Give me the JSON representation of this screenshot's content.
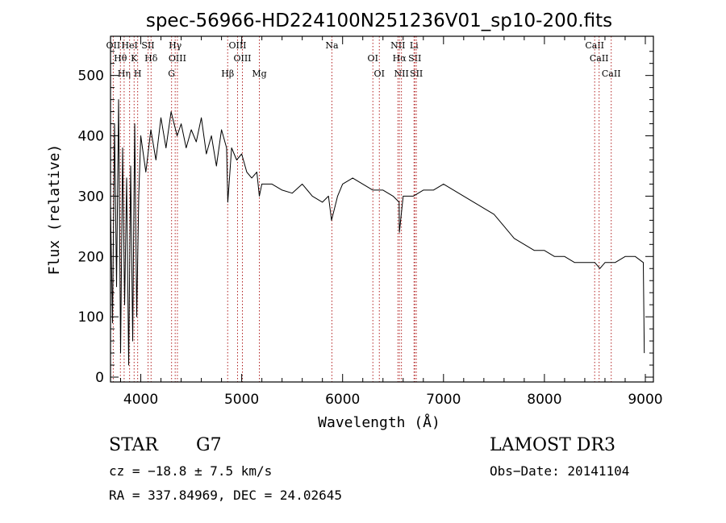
{
  "chart_data": {
    "type": "line",
    "title": "spec-56966-HD224100N251236V01_sp10-200.fits",
    "xlabel": "Wavelength (Å)",
    "ylabel": "Flux (relative)",
    "xlim": [
      3700,
      9080
    ],
    "ylim": [
      -8,
      565
    ],
    "x_ticks": [
      4000,
      5000,
      6000,
      7000,
      8000,
      9000
    ],
    "y_ticks": [
      0,
      100,
      200,
      300,
      400,
      500
    ],
    "series": [
      {
        "name": "spectrum",
        "x": [
          3700,
          3720,
          3740,
          3760,
          3780,
          3800,
          3820,
          3840,
          3860,
          3880,
          3900,
          3920,
          3940,
          3960,
          3980,
          4000,
          4050,
          4100,
          4150,
          4200,
          4250,
          4300,
          4330,
          4360,
          4400,
          4450,
          4500,
          4550,
          4600,
          4650,
          4700,
          4750,
          4800,
          4850,
          4862,
          4900,
          4950,
          5000,
          5050,
          5100,
          5150,
          5175,
          5200,
          5300,
          5400,
          5500,
          5600,
          5700,
          5800,
          5860,
          5890,
          5950,
          6000,
          6100,
          6200,
          6300,
          6400,
          6500,
          6560,
          6563,
          6600,
          6700,
          6800,
          6900,
          7000,
          7100,
          7200,
          7300,
          7400,
          7500,
          7600,
          7700,
          7800,
          7900,
          8000,
          8100,
          8200,
          8300,
          8400,
          8500,
          8550,
          8600,
          8650,
          8700,
          8800,
          8900,
          8980,
          8990
        ],
        "y": [
          280,
          90,
          420,
          150,
          460,
          40,
          380,
          120,
          330,
          20,
          350,
          60,
          420,
          100,
          300,
          400,
          340,
          410,
          360,
          430,
          380,
          440,
          420,
          400,
          420,
          380,
          410,
          390,
          430,
          370,
          400,
          350,
          410,
          380,
          290,
          380,
          360,
          370,
          340,
          330,
          340,
          300,
          320,
          320,
          310,
          305,
          320,
          300,
          290,
          300,
          260,
          300,
          320,
          330,
          320,
          310,
          310,
          300,
          290,
          240,
          300,
          300,
          310,
          310,
          320,
          310,
          300,
          290,
          280,
          270,
          250,
          230,
          220,
          210,
          210,
          200,
          200,
          190,
          190,
          190,
          180,
          190,
          190,
          190,
          200,
          200,
          190,
          40
        ]
      }
    ],
    "line_markers": [
      {
        "label": "OII",
        "x": 3727
      },
      {
        "label": "Hθ",
        "x": 3798
      },
      {
        "label": "Hη",
        "x": 3835
      },
      {
        "label": "HeI",
        "x": 3889
      },
      {
        "label": "K",
        "x": 3934
      },
      {
        "label": "H",
        "x": 3969
      },
      {
        "label": "SII",
        "x": 4072
      },
      {
        "label": "Hδ",
        "x": 4102
      },
      {
        "label": "G",
        "x": 4305
      },
      {
        "label": "Hγ",
        "x": 4341
      },
      {
        "label": "OIII",
        "x": 4363
      },
      {
        "label": "Hβ",
        "x": 4861
      },
      {
        "label": "OIII",
        "x": 4959
      },
      {
        "label": "OIII",
        "x": 5007
      },
      {
        "label": "Mg",
        "x": 5175
      },
      {
        "label": "Na",
        "x": 5894
      },
      {
        "label": "OI",
        "x": 6300
      },
      {
        "label": "OI",
        "x": 6364
      },
      {
        "label": "NII",
        "x": 6548
      },
      {
        "label": "Hα",
        "x": 6563
      },
      {
        "label": "NII",
        "x": 6583
      },
      {
        "label": "Li",
        "x": 6708
      },
      {
        "label": "SII",
        "x": 6716
      },
      {
        "label": "SII",
        "x": 6731
      },
      {
        "label": "CaII",
        "x": 8498
      },
      {
        "label": "CaII",
        "x": 8542
      },
      {
        "label": "CaII",
        "x": 8662
      }
    ]
  },
  "info": {
    "object_class": "STAR",
    "subclass": "G7",
    "survey": "LAMOST DR3",
    "redshift": "cz = −18.8 ± 7.5 km/s",
    "obs_date": "Obs−Date: 20141104",
    "coords": "RA = 337.84969, DEC =  24.02645"
  },
  "colors": {
    "line": "#000000",
    "markers": "#b22222",
    "background": "#ffffff"
  }
}
